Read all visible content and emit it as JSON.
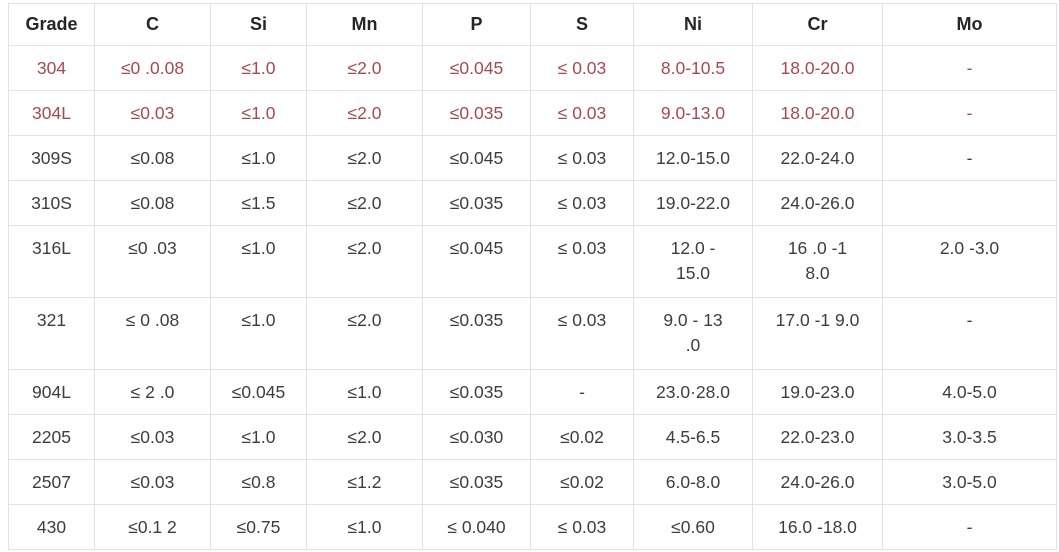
{
  "colors": {
    "highlight_text": "#a8494f",
    "body_text": "#3d3d3d",
    "header_text": "#262626",
    "border": "#e1e1e1",
    "background": "#ffffff"
  },
  "table": {
    "headers": [
      "Grade",
      "C",
      "Si",
      "Mn",
      "P",
      "S",
      "Ni",
      "Cr",
      "Mo"
    ],
    "rows": [
      {
        "highlight": true,
        "tall": false,
        "values": [
          "304",
          "≤0 .0.08",
          "≤1.0",
          "≤2.0",
          "≤0.045",
          "≤ 0.03",
          "8.0-10.5",
          "18.0-20.0",
          "-"
        ]
      },
      {
        "highlight": true,
        "tall": false,
        "values": [
          "304L",
          "≤0.03",
          "≤1.0",
          "≤2.0",
          "≤0.035",
          "≤ 0.03",
          "9.0-13.0",
          "18.0-20.0",
          "-"
        ]
      },
      {
        "highlight": false,
        "tall": false,
        "values": [
          "309S",
          "≤0.08",
          "≤1.0",
          "≤2.0",
          "≤0.045",
          "≤ 0.03",
          "12.0-15.0",
          "22.0-24.0",
          "-"
        ]
      },
      {
        "highlight": false,
        "tall": false,
        "values": [
          "310S",
          "≤0.08",
          "≤1.5",
          "≤2.0",
          "≤0.035",
          "≤ 0.03",
          "19.0-22.0",
          "24.0-26.0",
          ""
        ]
      },
      {
        "highlight": false,
        "tall": true,
        "values": [
          "316L",
          "≤0 .03",
          "≤1.0",
          "≤2.0",
          "≤0.045",
          "≤ 0.03",
          "12.0 -\n15.0",
          "16 .0 -1\n8.0",
          "2.0 -3.0"
        ]
      },
      {
        "highlight": false,
        "tall": true,
        "values": [
          "321",
          "≤ 0 .08",
          "≤1.0",
          "≤2.0",
          "≤0.035",
          "≤ 0.03",
          "9.0 - 13\n.0",
          "17.0 -1 9.0",
          "-"
        ]
      },
      {
        "highlight": false,
        "tall": false,
        "values": [
          "904L",
          "≤ 2 .0",
          "≤0.045",
          "≤1.0",
          "≤0.035",
          "-",
          "23.0·28.0",
          "19.0-23.0",
          "4.0-5.0"
        ]
      },
      {
        "highlight": false,
        "tall": false,
        "values": [
          "2205",
          "≤0.03",
          "≤1.0",
          "≤2.0",
          "≤0.030",
          "≤0.02",
          "4.5-6.5",
          "22.0-23.0",
          "3.0-3.5"
        ]
      },
      {
        "highlight": false,
        "tall": false,
        "values": [
          "2507",
          "≤0.03",
          "≤0.8",
          "≤1.2",
          "≤0.035",
          "≤0.02",
          "6.0-8.0",
          "24.0-26.0",
          "3.0-5.0"
        ]
      },
      {
        "highlight": false,
        "tall": false,
        "values": [
          "430",
          "≤0.1 2",
          "≤0.75",
          "≤1.0",
          "≤ 0.040",
          "≤ 0.03",
          "≤0.60",
          "16.0 -18.0",
          "-"
        ]
      }
    ]
  }
}
